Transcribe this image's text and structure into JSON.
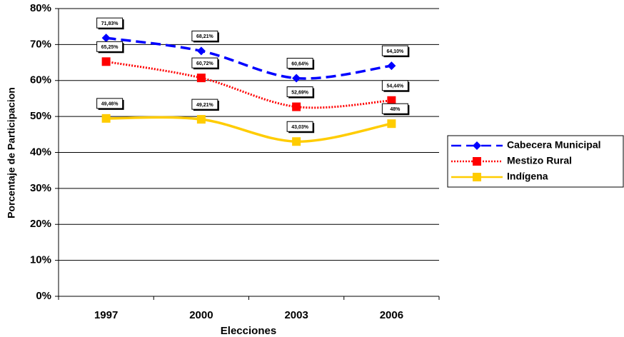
{
  "chart_data": {
    "type": "line",
    "x_label": "Elecciones",
    "y_label": "Porcentaje de Participacion",
    "categories": [
      "1997",
      "2000",
      "2003",
      "2006"
    ],
    "series": [
      {
        "name": "Cabecera Municipal",
        "color": "#0000ff",
        "marker": "diamond",
        "dash": "14 7",
        "values": [
          71.83,
          68.21,
          60.64,
          64.1
        ],
        "value_labels": [
          "71,83%",
          "68,21%",
          "60,64%",
          "64,10%"
        ]
      },
      {
        "name": "Mestizo Rural",
        "color": "#ff0000",
        "marker": "square",
        "dash": "2 2",
        "values": [
          65.25,
          60.72,
          52.69,
          54.44
        ],
        "value_labels": [
          "65,25%",
          "60,72%",
          "52,69%",
          "54,44%"
        ]
      },
      {
        "name": "Indígena",
        "color": "#ffcc00",
        "marker": "square",
        "dash": "none",
        "values": [
          49.46,
          49.21,
          43.03,
          48
        ],
        "value_labels": [
          "49,46%",
          "49,21%",
          "43,03%",
          "48%"
        ]
      }
    ],
    "ylim": [
      0,
      80
    ],
    "yticks": [
      {
        "value": 0,
        "label": "0%"
      },
      {
        "value": 10,
        "label": "10%"
      },
      {
        "value": 20,
        "label": "20%"
      },
      {
        "value": 30,
        "label": "30%"
      },
      {
        "value": 40,
        "label": "40%"
      },
      {
        "value": 50,
        "label": "50%"
      },
      {
        "value": 60,
        "label": "60%"
      },
      {
        "value": 70,
        "label": "70%"
      },
      {
        "value": 80,
        "label": "80%"
      }
    ],
    "grid": true,
    "legend": "right"
  }
}
